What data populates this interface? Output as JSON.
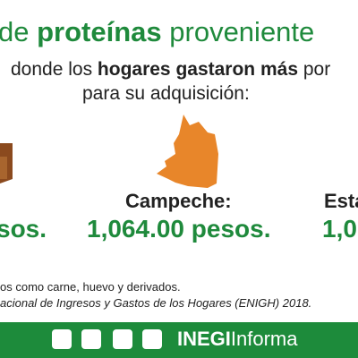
{
  "header": {
    "title": [
      "de",
      "proteínas",
      "proveniente"
    ],
    "subtitle": [
      "donde los",
      "hogares gastaron más",
      "por",
      "para su adquisición:"
    ]
  },
  "items": [
    {
      "value": "sos."
    },
    {
      "name": "Campeche:",
      "value": "1,064.00 pesos."
    },
    {
      "name": "Esta",
      "value": "1,0"
    }
  ],
  "footnotes": [
    "os como carne, huevo y derivados.",
    "acional de Ingresos y Gastos de los Hogares (ENIGH) 2018."
  ],
  "footer": {
    "brand": [
      "INEGI",
      "Informa"
    ]
  }
}
